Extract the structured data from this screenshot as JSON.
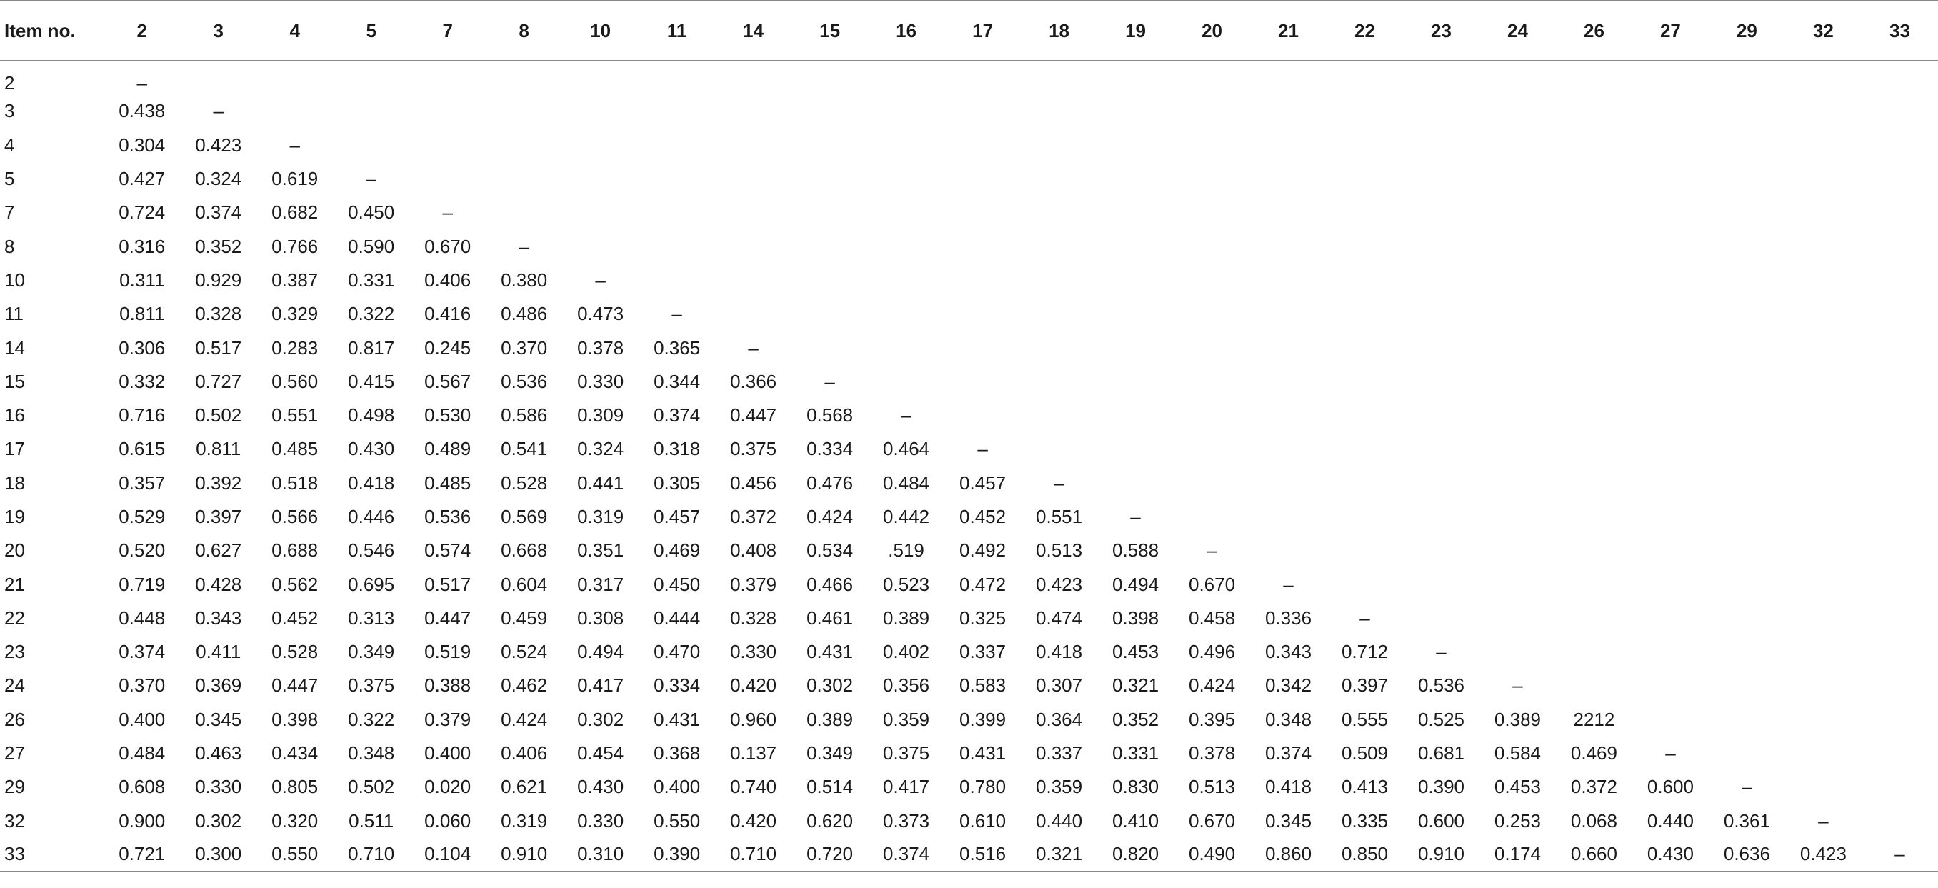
{
  "table": {
    "header_label": "Item no.",
    "columns": [
      "2",
      "3",
      "4",
      "5",
      "7",
      "8",
      "10",
      "11",
      "14",
      "15",
      "16",
      "17",
      "18",
      "19",
      "20",
      "21",
      "22",
      "23",
      "24",
      "26",
      "27",
      "29",
      "32",
      "33"
    ],
    "rows": [
      {
        "item": "2",
        "values": [
          "–"
        ]
      },
      {
        "item": "3",
        "values": [
          "0.438",
          "–"
        ]
      },
      {
        "item": "4",
        "values": [
          "0.304",
          "0.423",
          "–"
        ]
      },
      {
        "item": "5",
        "values": [
          "0.427",
          "0.324",
          "0.619",
          "–"
        ]
      },
      {
        "item": "7",
        "values": [
          "0.724",
          "0.374",
          "0.682",
          "0.450",
          "–"
        ]
      },
      {
        "item": "8",
        "values": [
          "0.316",
          "0.352",
          "0.766",
          "0.590",
          "0.670",
          "–"
        ]
      },
      {
        "item": "10",
        "values": [
          "0.311",
          "0.929",
          "0.387",
          "0.331",
          "0.406",
          "0.380",
          "–"
        ]
      },
      {
        "item": "11",
        "values": [
          "0.811",
          "0.328",
          "0.329",
          "0.322",
          "0.416",
          "0.486",
          "0.473",
          "–"
        ]
      },
      {
        "item": "14",
        "values": [
          "0.306",
          "0.517",
          "0.283",
          "0.817",
          "0.245",
          "0.370",
          "0.378",
          "0.365",
          "–"
        ]
      },
      {
        "item": "15",
        "values": [
          "0.332",
          "0.727",
          "0.560",
          "0.415",
          "0.567",
          "0.536",
          "0.330",
          "0.344",
          "0.366",
          "–"
        ]
      },
      {
        "item": "16",
        "values": [
          "0.716",
          "0.502",
          "0.551",
          "0.498",
          "0.530",
          "0.586",
          "0.309",
          "0.374",
          "0.447",
          "0.568",
          "–"
        ]
      },
      {
        "item": "17",
        "values": [
          "0.615",
          "0.811",
          "0.485",
          "0.430",
          "0.489",
          "0.541",
          "0.324",
          "0.318",
          "0.375",
          "0.334",
          "0.464",
          "–"
        ]
      },
      {
        "item": "18",
        "values": [
          "0.357",
          "0.392",
          "0.518",
          "0.418",
          "0.485",
          "0.528",
          "0.441",
          "0.305",
          "0.456",
          "0.476",
          "0.484",
          "0.457",
          "–"
        ]
      },
      {
        "item": "19",
        "values": [
          "0.529",
          "0.397",
          "0.566",
          "0.446",
          "0.536",
          "0.569",
          "0.319",
          "0.457",
          "0.372",
          "0.424",
          "0.442",
          "0.452",
          "0.551",
          "–"
        ]
      },
      {
        "item": "20",
        "values": [
          "0.520",
          "0.627",
          "0.688",
          "0.546",
          "0.574",
          "0.668",
          "0.351",
          "0.469",
          "0.408",
          "0.534",
          ".519",
          "0.492",
          "0.513",
          "0.588",
          "–"
        ]
      },
      {
        "item": "21",
        "values": [
          "0.719",
          "0.428",
          "0.562",
          "0.695",
          "0.517",
          "0.604",
          "0.317",
          "0.450",
          "0.379",
          "0.466",
          "0.523",
          "0.472",
          "0.423",
          "0.494",
          "0.670",
          "–"
        ]
      },
      {
        "item": "22",
        "values": [
          "0.448",
          "0.343",
          "0.452",
          "0.313",
          "0.447",
          "0.459",
          "0.308",
          "0.444",
          "0.328",
          "0.461",
          "0.389",
          "0.325",
          "0.474",
          "0.398",
          "0.458",
          "0.336",
          "–"
        ]
      },
      {
        "item": "23",
        "values": [
          "0.374",
          "0.411",
          "0.528",
          "0.349",
          "0.519",
          "0.524",
          "0.494",
          "0.470",
          "0.330",
          "0.431",
          "0.402",
          "0.337",
          "0.418",
          "0.453",
          "0.496",
          "0.343",
          "0.712",
          "–"
        ]
      },
      {
        "item": "24",
        "values": [
          "0.370",
          "0.369",
          "0.447",
          "0.375",
          "0.388",
          "0.462",
          "0.417",
          "0.334",
          "0.420",
          "0.302",
          "0.356",
          "0.583",
          "0.307",
          "0.321",
          "0.424",
          "0.342",
          "0.397",
          "0.536",
          "–"
        ]
      },
      {
        "item": "26",
        "values": [
          "0.400",
          "0.345",
          "0.398",
          "0.322",
          "0.379",
          "0.424",
          "0.302",
          "0.431",
          "0.960",
          "0.389",
          "0.359",
          "0.399",
          "0.364",
          "0.352",
          "0.395",
          "0.348",
          "0.555",
          "0.525",
          "0.389",
          "2212"
        ]
      },
      {
        "item": "27",
        "values": [
          "0.484",
          "0.463",
          "0.434",
          "0.348",
          "0.400",
          "0.406",
          "0.454",
          "0.368",
          "0.137",
          "0.349",
          "0.375",
          "0.431",
          "0.337",
          "0.331",
          "0.378",
          "0.374",
          "0.509",
          "0.681",
          "0.584",
          "0.469",
          "–"
        ]
      },
      {
        "item": "29",
        "values": [
          "0.608",
          "0.330",
          "0.805",
          "0.502",
          "0.020",
          "0.621",
          "0.430",
          "0.400",
          "0.740",
          "0.514",
          "0.417",
          "0.780",
          "0.359",
          "0.830",
          "0.513",
          "0.418",
          "0.413",
          "0.390",
          "0.453",
          "0.372",
          "0.600",
          "–"
        ]
      },
      {
        "item": "32",
        "values": [
          "0.900",
          "0.302",
          "0.320",
          "0.511",
          "0.060",
          "0.319",
          "0.330",
          "0.550",
          "0.420",
          "0.620",
          "0.373",
          "0.610",
          "0.440",
          "0.410",
          "0.670",
          "0.345",
          "0.335",
          "0.600",
          "0.253",
          "0.068",
          "0.440",
          "0.361",
          "–"
        ]
      },
      {
        "item": "33",
        "values": [
          "0.721",
          "0.300",
          "0.550",
          "0.710",
          "0.104",
          "0.910",
          "0.310",
          "0.390",
          "0.710",
          "0.720",
          "0.374",
          "0.516",
          "0.321",
          "0.820",
          "0.490",
          "0.860",
          "0.850",
          "0.910",
          "0.174",
          "0.660",
          "0.430",
          "0.636",
          "0.423",
          "–"
        ]
      }
    ]
  }
}
